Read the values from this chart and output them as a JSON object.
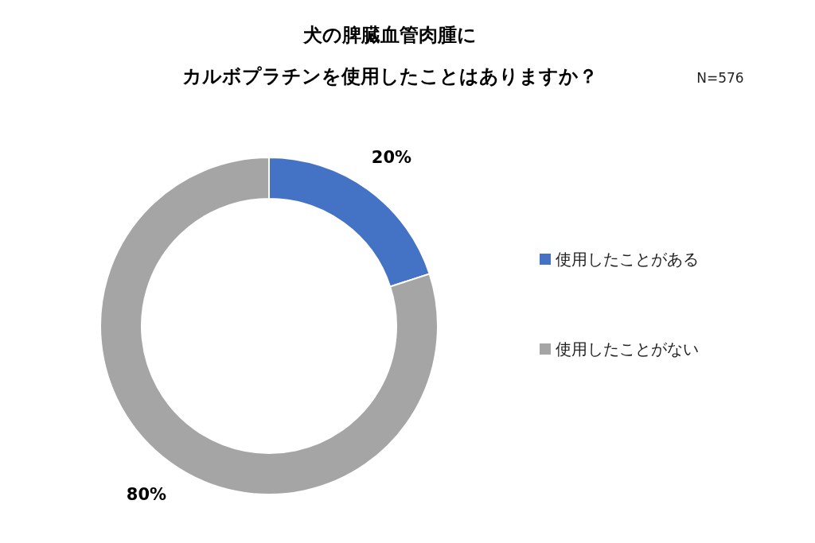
{
  "chart_data": {
    "type": "donut",
    "title": "犬の脾臓血管肉腫に",
    "subtitle": "カルボプラチンを使用したことはありますか？",
    "annotations": [
      "N=576"
    ],
    "categories": [
      "使用したことがある",
      "使用したことがない"
    ],
    "values": [
      20,
      80
    ],
    "colors": [
      "#4472c4",
      "#a5a5a5"
    ],
    "value_labels": [
      "20%",
      "80%"
    ],
    "legend": "right"
  }
}
